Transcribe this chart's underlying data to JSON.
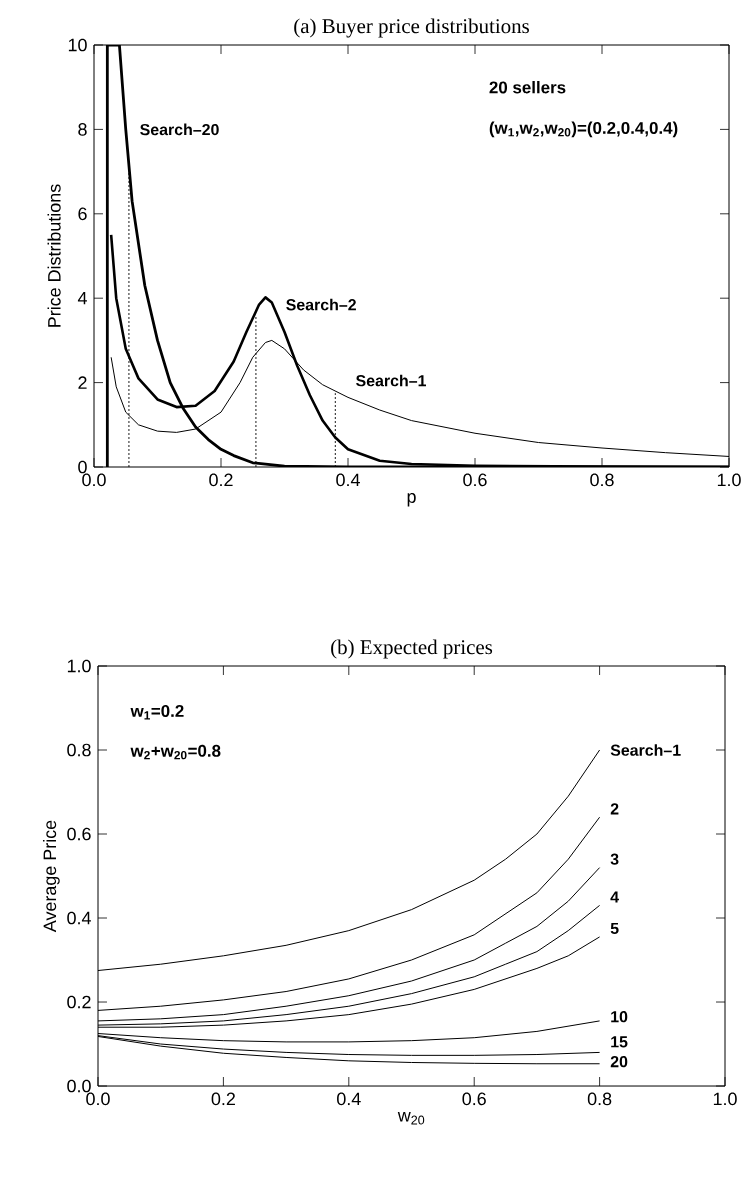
{
  "chart_data": [
    {
      "type": "line",
      "title": "(a) Buyer price distributions",
      "xlabel": "p",
      "ylabel": "Price Distributions",
      "xlim": [
        0,
        1
      ],
      "ylim": [
        0,
        10
      ],
      "xticks": [
        {
          "value": 0,
          "label": "0.0"
        },
        {
          "value": 0.2,
          "label": "0.2"
        },
        {
          "value": 0.4,
          "label": "0.4"
        },
        {
          "value": 0.6,
          "label": "0.6"
        },
        {
          "value": 0.8,
          "label": "0.8"
        },
        {
          "value": 1,
          "label": "1.0"
        }
      ],
      "yticks": [
        0,
        2,
        4,
        6,
        8,
        10
      ],
      "annotations": [
        "20 sellers",
        "(w$_{1}$,w$_{2}$,w$_{20}$)=(0.2,0.4,0.4)"
      ],
      "series": [
        {
          "name": "Search–20",
          "color": "#000000",
          "x": [
            0.021,
            0.021,
            0.04,
            0.05,
            0.06,
            0.08,
            0.1,
            0.12,
            0.14,
            0.16,
            0.18,
            0.2,
            0.22,
            0.25,
            0.3,
            0.4,
            1.0
          ],
          "values": [
            0,
            10,
            10,
            8.0,
            6.3,
            4.3,
            3.0,
            2.0,
            1.4,
            0.95,
            0.65,
            0.42,
            0.27,
            0.1,
            0.02,
            0,
            0
          ]
        },
        {
          "name": "Search–2",
          "color": "#000000",
          "x": [
            0.027,
            0.035,
            0.05,
            0.07,
            0.1,
            0.13,
            0.16,
            0.19,
            0.22,
            0.24,
            0.26,
            0.27,
            0.28,
            0.3,
            0.32,
            0.34,
            0.36,
            0.38,
            0.4,
            0.45,
            0.5,
            0.6,
            0.8,
            1.0
          ],
          "values": [
            5.5,
            4.0,
            2.8,
            2.1,
            1.6,
            1.42,
            1.45,
            1.8,
            2.5,
            3.2,
            3.85,
            4.02,
            3.9,
            3.2,
            2.4,
            1.7,
            1.1,
            0.7,
            0.42,
            0.15,
            0.07,
            0.03,
            0.01,
            0
          ]
        },
        {
          "name": "Search–1",
          "color": "#000000",
          "x": [
            0.027,
            0.035,
            0.05,
            0.07,
            0.1,
            0.13,
            0.16,
            0.2,
            0.23,
            0.25,
            0.27,
            0.28,
            0.3,
            0.33,
            0.36,
            0.4,
            0.45,
            0.5,
            0.6,
            0.7,
            0.8,
            0.9,
            1.0
          ],
          "values": [
            2.6,
            1.9,
            1.3,
            1.0,
            0.85,
            0.82,
            0.9,
            1.3,
            2.0,
            2.6,
            2.95,
            3.0,
            2.8,
            2.3,
            1.95,
            1.65,
            1.35,
            1.1,
            0.8,
            0.58,
            0.45,
            0.34,
            0.25
          ]
        },
        {
          "color": "#000000",
          "line_style": "dotted",
          "x": [
            0.055,
            0.055
          ],
          "values": [
            0,
            7.2
          ]
        },
        {
          "color": "#000000",
          "line_style": "dotted",
          "x": [
            0.255,
            0.255
          ],
          "values": [
            0,
            3.6
          ]
        },
        {
          "color": "#000000",
          "line_style": "dotted",
          "x": [
            0.38,
            0.38
          ],
          "values": [
            0,
            1.75
          ]
        }
      ]
    },
    {
      "type": "line",
      "title": "(b) Expected prices",
      "xlabel": "w$_{20}$",
      "ylabel": "Average Price",
      "xlim": [
        0,
        1
      ],
      "ylim": [
        0,
        1
      ],
      "xticks": [
        {
          "value": 0,
          "label": "0.0"
        },
        {
          "value": 0.2,
          "label": "0.2"
        },
        {
          "value": 0.4,
          "label": "0.4"
        },
        {
          "value": 0.6,
          "label": "0.6"
        },
        {
          "value": 0.8,
          "label": "0.8"
        },
        {
          "value": 1,
          "label": "1.0"
        }
      ],
      "yticks": [
        {
          "value": 0,
          "label": "0.0"
        },
        {
          "value": 0.2,
          "label": "0.2"
        },
        {
          "value": 0.4,
          "label": "0.4"
        },
        {
          "value": 0.6,
          "label": "0.6"
        },
        {
          "value": 0.8,
          "label": "0.8"
        },
        {
          "value": 1,
          "label": "1.0"
        }
      ],
      "annotations": [
        "w$_{1}$=0.2",
        "w$_{2}$+w$_{20}$=0.8"
      ],
      "series": [
        {
          "name": "Search–1",
          "color": "#000000",
          "x": [
            0,
            0.1,
            0.2,
            0.3,
            0.4,
            0.5,
            0.6,
            0.65,
            0.7,
            0.75,
            0.8
          ],
          "values": [
            0.275,
            0.29,
            0.31,
            0.335,
            0.37,
            0.42,
            0.49,
            0.54,
            0.6,
            0.69,
            0.8
          ]
        },
        {
          "name": "2",
          "color": "#000000",
          "x": [
            0,
            0.1,
            0.2,
            0.3,
            0.4,
            0.5,
            0.6,
            0.65,
            0.7,
            0.75,
            0.8
          ],
          "values": [
            0.18,
            0.19,
            0.205,
            0.225,
            0.255,
            0.3,
            0.36,
            0.41,
            0.46,
            0.54,
            0.64
          ]
        },
        {
          "name": "3",
          "color": "#000000",
          "x": [
            0,
            0.1,
            0.2,
            0.3,
            0.4,
            0.5,
            0.6,
            0.65,
            0.7,
            0.75,
            0.8
          ],
          "values": [
            0.155,
            0.16,
            0.17,
            0.19,
            0.215,
            0.25,
            0.3,
            0.34,
            0.38,
            0.44,
            0.52
          ]
        },
        {
          "name": "4",
          "color": "#000000",
          "x": [
            0,
            0.1,
            0.2,
            0.3,
            0.4,
            0.5,
            0.6,
            0.65,
            0.7,
            0.75,
            0.8
          ],
          "values": [
            0.145,
            0.148,
            0.155,
            0.17,
            0.19,
            0.22,
            0.26,
            0.29,
            0.32,
            0.37,
            0.43
          ]
        },
        {
          "name": "5",
          "color": "#000000",
          "x": [
            0,
            0.1,
            0.2,
            0.3,
            0.4,
            0.5,
            0.6,
            0.65,
            0.7,
            0.75,
            0.8
          ],
          "values": [
            0.14,
            0.14,
            0.145,
            0.155,
            0.17,
            0.195,
            0.23,
            0.255,
            0.28,
            0.31,
            0.355
          ]
        },
        {
          "name": "10",
          "color": "#000000",
          "x": [
            0,
            0.1,
            0.2,
            0.3,
            0.4,
            0.5,
            0.6,
            0.7,
            0.8
          ],
          "values": [
            0.125,
            0.115,
            0.108,
            0.105,
            0.105,
            0.108,
            0.115,
            0.13,
            0.155
          ]
        },
        {
          "name": "15",
          "color": "#000000",
          "x": [
            0,
            0.1,
            0.2,
            0.3,
            0.4,
            0.5,
            0.6,
            0.7,
            0.8
          ],
          "values": [
            0.12,
            0.1,
            0.088,
            0.08,
            0.075,
            0.073,
            0.073,
            0.075,
            0.08
          ]
        },
        {
          "name": "20",
          "color": "#000000",
          "x": [
            0,
            0.1,
            0.2,
            0.3,
            0.4,
            0.5,
            0.6,
            0.7,
            0.8
          ],
          "values": [
            0.118,
            0.095,
            0.078,
            0.068,
            0.06,
            0.056,
            0.054,
            0.053,
            0.053
          ]
        }
      ]
    }
  ]
}
